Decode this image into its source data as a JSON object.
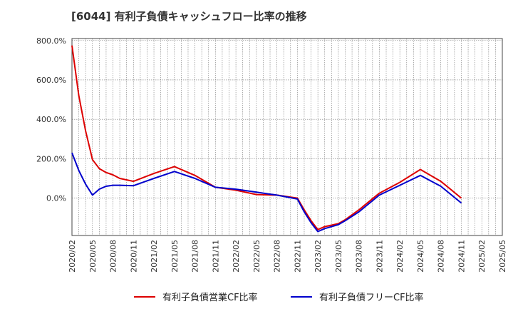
{
  "chart_data": {
    "type": "line",
    "title": "[6044]  有利子負債キャッシュフロー比率の推移",
    "xlabel": "",
    "ylabel": "",
    "ylim": [
      -190,
      810
    ],
    "y_ticks": [
      800,
      600,
      400,
      200,
      0
    ],
    "y_tick_labels": [
      "800.0%",
      "600.0%",
      "400.0%",
      "200.0%",
      "0.0%"
    ],
    "x_range": [
      "2020-02",
      "2025-05"
    ],
    "x_tick_labels": [
      "2020/02",
      "2020/05",
      "2020/08",
      "2020/11",
      "2021/02",
      "2021/05",
      "2021/08",
      "2021/11",
      "2022/02",
      "2022/05",
      "2022/08",
      "2022/11",
      "2023/02",
      "2023/05",
      "2023/08",
      "2023/11",
      "2024/02",
      "2024/05",
      "2024/08",
      "2024/11",
      "2025/02",
      "2025/05"
    ],
    "grid": true,
    "legend_position": "bottom",
    "x": [
      "2020-02",
      "2020-03",
      "2020-04",
      "2020-05",
      "2020-06",
      "2020-07",
      "2020-08",
      "2020-09",
      "2020-11",
      "2021-02",
      "2021-05",
      "2021-08",
      "2021-11",
      "2022-02",
      "2022-05",
      "2022-08",
      "2022-11",
      "2022-12",
      "2023-01",
      "2023-02",
      "2023-03",
      "2023-05",
      "2023-06",
      "2023-08",
      "2023-11",
      "2024-02",
      "2024-05",
      "2024-08",
      "2024-11"
    ],
    "series": [
      {
        "name": "有利子負債営業CF比率",
        "color": "#dd0000",
        "values": [
          775,
          520,
          340,
          195,
          150,
          130,
          118,
          100,
          85,
          125,
          160,
          115,
          55,
          40,
          18,
          15,
          0,
          -60,
          -115,
          -160,
          -145,
          -130,
          -110,
          -60,
          25,
          80,
          145,
          85,
          0
        ]
      },
      {
        "name": "有利子負債フリーCF比率",
        "color": "#0000cc",
        "values": [
          230,
          140,
          70,
          15,
          45,
          60,
          65,
          65,
          63,
          100,
          135,
          100,
          55,
          45,
          30,
          15,
          -5,
          -70,
          -125,
          -170,
          -155,
          -135,
          -115,
          -70,
          15,
          65,
          115,
          60,
          -25
        ]
      }
    ]
  }
}
